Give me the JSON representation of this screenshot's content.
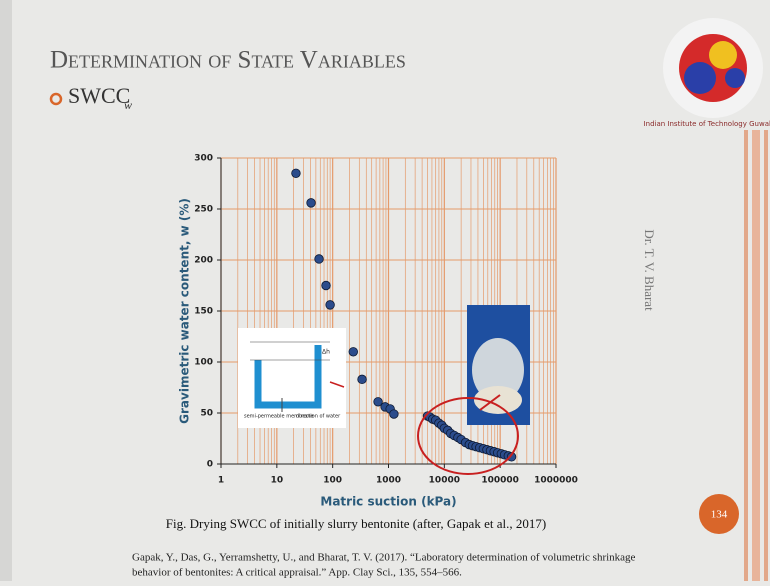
{
  "slide": {
    "title": "Determination of State Variables",
    "bullet": "SWCC",
    "bullet_subscript": "w",
    "author": "Dr. T. V. Bharat",
    "page_number": "134",
    "logo_text": "Indian Institute of Technology Guwahati",
    "caption": "Fig. Drying SWCC of initially slurry bentonite (after, Gapak et al., 2017)",
    "reference": [
      "Gapak, Y., Das, G., Yerramshetty, U., and Bharat, T. V. (2017). “Laboratory determination of volumetric shrinkage",
      "behavior of bentonites: A critical appraisal.” App. Clay Sci., 135, 554–566."
    ],
    "inset_labels": [
      "semi-permeable membrane",
      "direction of water",
      "Δh"
    ]
  },
  "chart_data": {
    "type": "scatter",
    "x_label": "Matric suction (kPa)",
    "y_label": "Gravimetric water content, w (%)",
    "xscale": "log",
    "xlim": [
      1,
      1000000
    ],
    "xticks": [
      1,
      10,
      100,
      1000,
      10000,
      100000,
      1000000
    ],
    "ylim": [
      0,
      300
    ],
    "yticks": [
      0,
      50,
      100,
      150,
      200,
      250,
      300
    ],
    "grid": true,
    "color": "#2b4c8c",
    "grid_color": "#e59a6a",
    "x": [
      22,
      41,
      57,
      76,
      90,
      234,
      336,
      650,
      870,
      1070,
      1250,
      5000,
      5500,
      6200,
      7000,
      8000,
      9000,
      10000,
      11500,
      13000,
      15000,
      17500,
      20000,
      24000,
      28000,
      32000,
      37000,
      43000,
      50000,
      58000,
      67000,
      78000,
      90000,
      105000,
      120000,
      140000,
      160000
    ],
    "values": [
      285,
      256,
      201,
      175,
      156,
      110,
      83,
      61,
      56,
      54,
      49,
      47,
      46,
      44,
      43,
      40,
      38,
      35,
      33,
      30,
      28,
      26,
      24,
      21,
      19,
      18,
      17,
      16,
      15,
      14,
      13,
      12,
      11,
      10,
      9,
      8,
      7
    ]
  }
}
